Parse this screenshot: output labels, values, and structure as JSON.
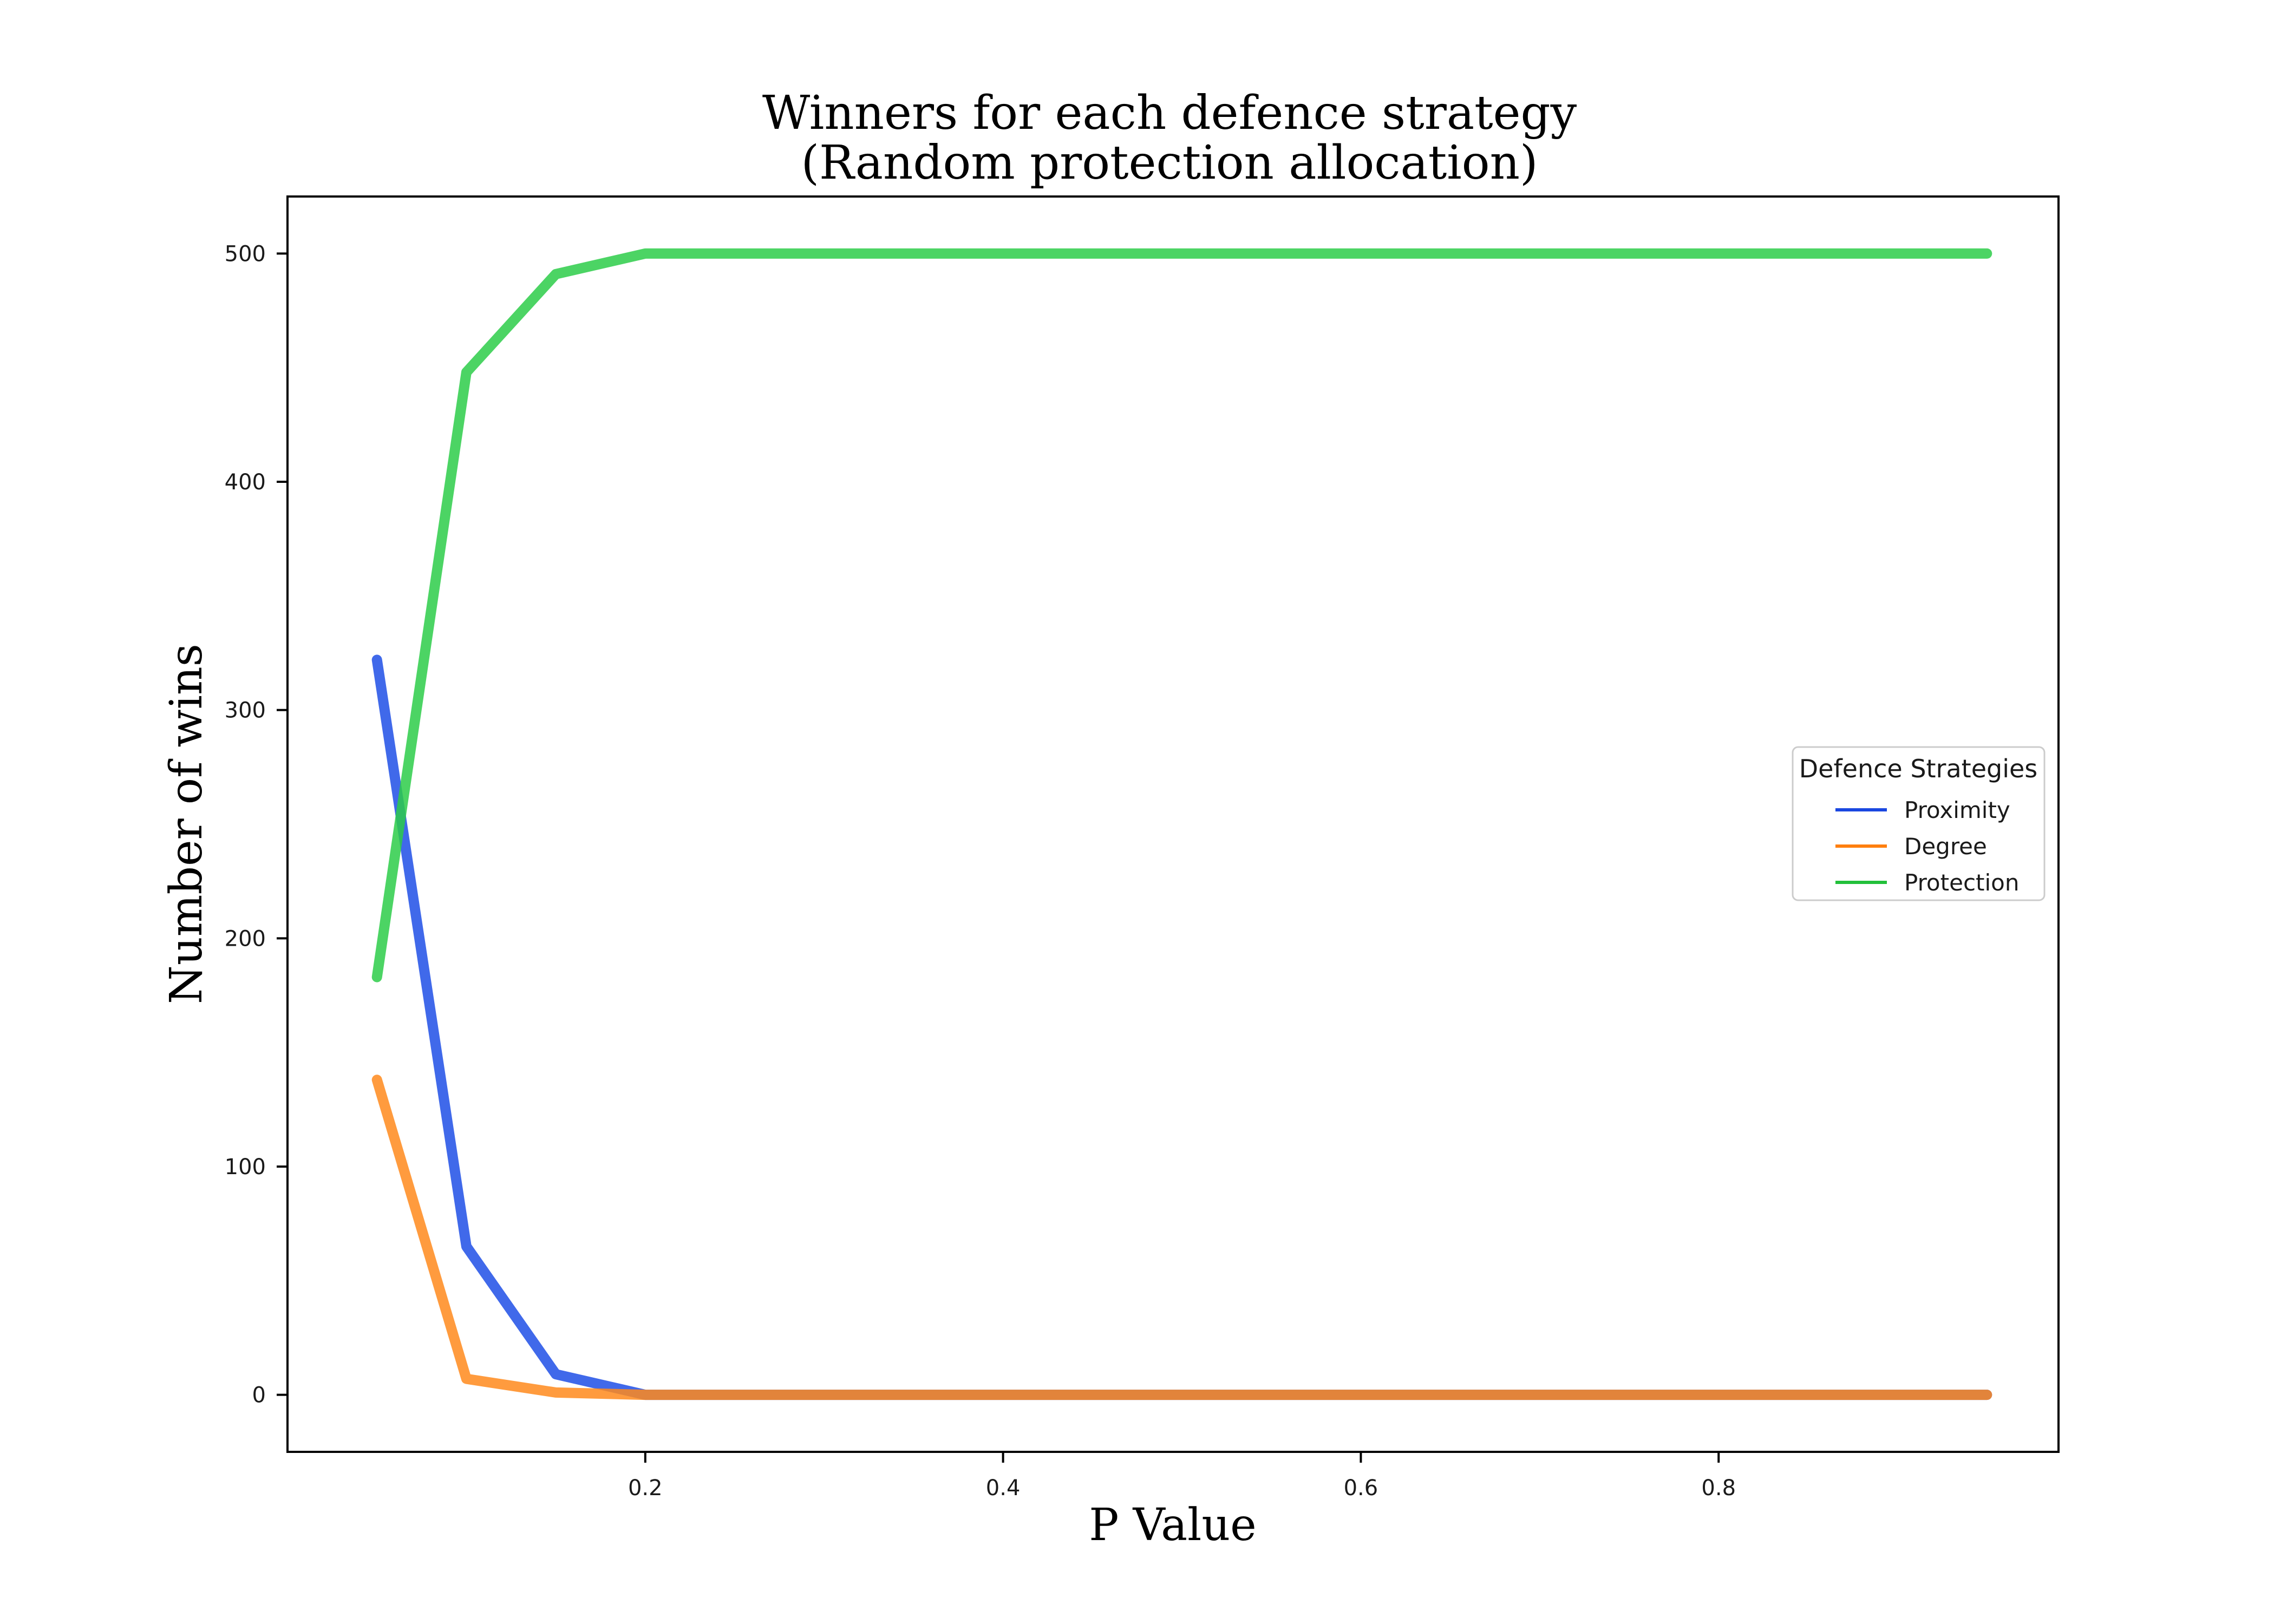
{
  "chart_data": {
    "type": "line",
    "title": [
      "Winners for each defence strategy",
      "(Random protection allocation)"
    ],
    "xlabel": "P Value",
    "ylabel": "Number of wins",
    "xlim": [
      0.0,
      0.99
    ],
    "ylim": [
      -25,
      525
    ],
    "xticks": [
      0.2,
      0.4,
      0.6,
      0.8
    ],
    "xtick_labels": [
      "0.2",
      "0.4",
      "0.6",
      "0.8"
    ],
    "yticks": [
      0,
      100,
      200,
      300,
      400,
      500
    ],
    "ytick_labels": [
      "0",
      "100",
      "200",
      "300",
      "400",
      "500"
    ],
    "grid": false,
    "legend": {
      "title": "Defence Strategies",
      "placement": "center-right"
    },
    "x": [
      0.05,
      0.1,
      0.15,
      0.2,
      0.25,
      0.3,
      0.35,
      0.4,
      0.45,
      0.5,
      0.55,
      0.6,
      0.65,
      0.7,
      0.75,
      0.8,
      0.85,
      0.9,
      0.95
    ],
    "series": [
      {
        "name": "Proximity",
        "color": "#1f4fe6",
        "legend_color": "#1a47e0",
        "values": [
          322,
          65,
          9,
          0,
          0,
          0,
          0,
          0,
          0,
          0,
          0,
          0,
          0,
          0,
          0,
          0,
          0,
          0,
          0
        ]
      },
      {
        "name": "Degree",
        "color": "#ff8a1c",
        "legend_color": "#ff7f0e",
        "values": [
          138,
          7,
          1,
          0,
          0,
          0,
          0,
          0,
          0,
          0,
          0,
          0,
          0,
          0,
          0,
          0,
          0,
          0,
          0
        ]
      },
      {
        "name": "Protection",
        "color": "#2dcc49",
        "legend_color": "#22c03a",
        "values": [
          183,
          448,
          491,
          500,
          500,
          500,
          500,
          500,
          500,
          500,
          500,
          500,
          500,
          500,
          500,
          500,
          500,
          500,
          500
        ]
      }
    ]
  }
}
